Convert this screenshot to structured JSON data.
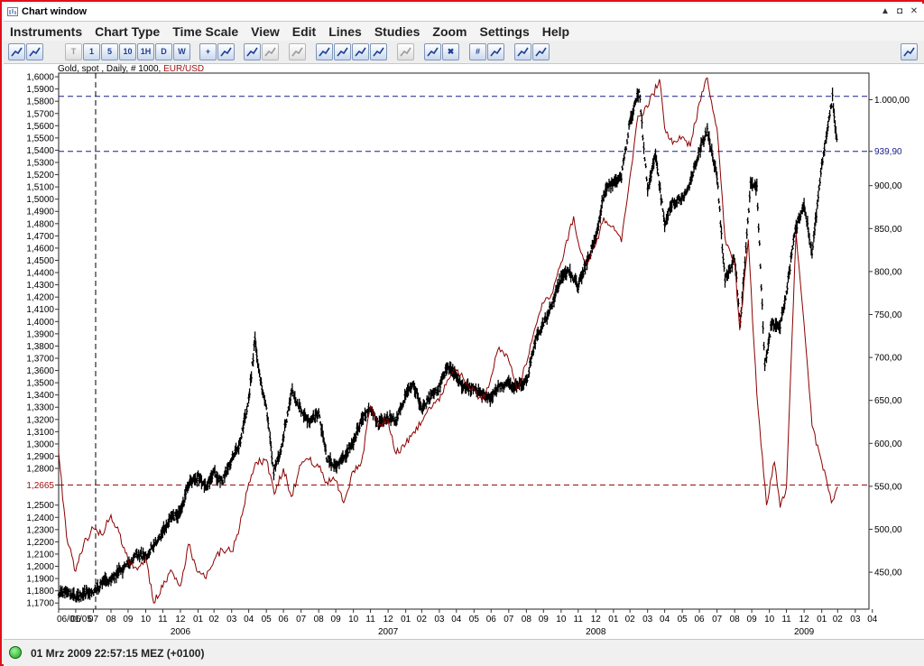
{
  "window": {
    "title": "Chart window",
    "minimize_glyph": "▲",
    "restore_glyph": "◘",
    "close_glyph": "✕"
  },
  "menu": [
    "Instruments",
    "Chart Type",
    "Time Scale",
    "View",
    "Edit",
    "Lines",
    "Studies",
    "Zoom",
    "Settings",
    "Help"
  ],
  "toolbar": [
    {
      "name": "instruments-icon",
      "label": "",
      "disabled": false
    },
    {
      "name": "bar-chart-type-icon",
      "label": "",
      "disabled": false
    },
    {
      "name": "tick-interval-button",
      "label": "T",
      "disabled": true
    },
    {
      "name": "interval-1-button",
      "label": "1",
      "disabled": false
    },
    {
      "name": "interval-5-button",
      "label": "5",
      "disabled": false
    },
    {
      "name": "interval-10-button",
      "label": "10",
      "disabled": false
    },
    {
      "name": "interval-1h-button",
      "label": "1H",
      "disabled": false
    },
    {
      "name": "interval-daily-button",
      "label": "D",
      "disabled": false
    },
    {
      "name": "interval-weekly-button",
      "label": "W",
      "disabled": false
    },
    {
      "name": "crosshair-icon",
      "label": "+",
      "disabled": false
    },
    {
      "name": "auto-scale-icon",
      "label": "",
      "disabled": false
    },
    {
      "name": "zoom-in-icon",
      "label": "",
      "disabled": false
    },
    {
      "name": "zoom-out-icon",
      "label": "",
      "disabled": true
    },
    {
      "name": "volume-icon",
      "label": "",
      "disabled": true
    },
    {
      "name": "trendline-icon",
      "label": "",
      "disabled": false
    },
    {
      "name": "channel-icon",
      "label": "",
      "disabled": false
    },
    {
      "name": "fibonacci-icon",
      "label": "",
      "disabled": false
    },
    {
      "name": "gann-icon",
      "label": "",
      "disabled": false
    },
    {
      "name": "select-line-icon",
      "label": "",
      "disabled": true
    },
    {
      "name": "eraser-icon",
      "label": "",
      "disabled": false
    },
    {
      "name": "delete-lines-icon",
      "label": "✖",
      "disabled": false
    },
    {
      "name": "grid-icon",
      "label": "#",
      "disabled": false
    },
    {
      "name": "grid-settings-icon",
      "label": "",
      "disabled": false
    },
    {
      "name": "print-icon",
      "label": "",
      "disabled": false
    },
    {
      "name": "print-preview-icon",
      "label": "",
      "disabled": false
    },
    {
      "name": "pin-icon",
      "label": "",
      "disabled": false
    }
  ],
  "chart_header": {
    "prefix": "Gold, spot , Daily, # 1000, ",
    "pair": "EUR/USD"
  },
  "status": {
    "text": "01 Mrz 2009 22:57:15  MEZ (+0100)"
  },
  "chart_data": {
    "type": "line",
    "title": "Gold, spot , Daily, # 1000, EUR/USD",
    "xlabel": "",
    "left_axis": {
      "series": "EUR/USD",
      "ticks": [
        "1,1700",
        "1,1800",
        "1,1900",
        "1,2000",
        "1,2100",
        "1,2200",
        "1,2300",
        "1,2400",
        "1,2500",
        "1,2665",
        "1,2800",
        "1,2900",
        "1,3000",
        "1,3100",
        "1,3200",
        "1,3300",
        "1,3400",
        "1,3500",
        "1,3600",
        "1,3700",
        "1,3800",
        "1,3900",
        "1,4000",
        "1,4100",
        "1,4200",
        "1,4300",
        "1,4400",
        "1,4500",
        "1,4600",
        "1,4700",
        "1,4800",
        "1,4900",
        "1,5000",
        "1,5100",
        "1,5200",
        "1,5300",
        "1,5400",
        "1,5500",
        "1,5600",
        "1,5700",
        "1,5800",
        "1,5900",
        "1,6000"
      ],
      "highlight_tick": "1,2665",
      "highlight_color": "#a01010",
      "ylim": [
        1.165,
        1.603
      ]
    },
    "right_axis": {
      "series": "Gold, spot",
      "ticks": [
        "450,00",
        "500,00",
        "550,00",
        "600,00",
        "650,00",
        "700,00",
        "750,00",
        "800,00",
        "850,00",
        "900,00",
        "939,90",
        "1.000,00"
      ],
      "highlight_tick": "939,90",
      "highlight_color": "#1a1a8c",
      "ylim": [
        407,
        1031
      ]
    },
    "x_axis": {
      "month_labels": [
        "06/01/05",
        "06",
        "07",
        "08",
        "09",
        "10",
        "11",
        "12",
        "01",
        "02",
        "03",
        "04",
        "05",
        "06",
        "07",
        "08",
        "09",
        "10",
        "11",
        "12",
        "01",
        "02",
        "03",
        "04",
        "05",
        "06",
        "07",
        "08",
        "09",
        "10",
        "11",
        "12",
        "01",
        "02",
        "03",
        "04",
        "05",
        "06",
        "07",
        "08",
        "09",
        "10",
        "11",
        "12",
        "01",
        "02",
        "03",
        "04"
      ],
      "year_labels": [
        "2006",
        "2007",
        "2008",
        "2009"
      ]
    },
    "reference_lines": [
      {
        "axis": "right",
        "value": 1004.0,
        "color": "#1a1a8c"
      },
      {
        "axis": "right",
        "value": 939.9,
        "color": "#1a1a8c"
      },
      {
        "axis": "left",
        "value": 1.2665,
        "color": "#8b0000"
      },
      {
        "axis": "x",
        "value": "2005-08-05",
        "color": "#000000"
      }
    ],
    "series": [
      {
        "name": "Gold, spot",
        "axis": "right",
        "color": "#000000",
        "points": [
          [
            "2005-06-01",
            424
          ],
          [
            "2005-06-15",
            428
          ],
          [
            "2005-07-01",
            420
          ],
          [
            "2005-07-15",
            425
          ],
          [
            "2005-08-01",
            428
          ],
          [
            "2005-08-10",
            432
          ],
          [
            "2005-08-20",
            441
          ],
          [
            "2005-09-01",
            439
          ],
          [
            "2005-09-15",
            450
          ],
          [
            "2005-10-01",
            460
          ],
          [
            "2005-10-15",
            470
          ],
          [
            "2005-11-01",
            469
          ],
          [
            "2005-11-15",
            481
          ],
          [
            "2005-12-01",
            497
          ],
          [
            "2005-12-15",
            513
          ],
          [
            "2006-01-01",
            518
          ],
          [
            "2006-01-15",
            553
          ],
          [
            "2006-02-01",
            562
          ],
          [
            "2006-02-15",
            551
          ],
          [
            "2006-03-01",
            565
          ],
          [
            "2006-03-15",
            555
          ],
          [
            "2006-04-01",
            582
          ],
          [
            "2006-04-15",
            600
          ],
          [
            "2006-05-01",
            650
          ],
          [
            "2006-05-12",
            721
          ],
          [
            "2006-05-20",
            680
          ],
          [
            "2006-06-01",
            642
          ],
          [
            "2006-06-14",
            568
          ],
          [
            "2006-06-25",
            590
          ],
          [
            "2006-07-05",
            623
          ],
          [
            "2006-07-15",
            661
          ],
          [
            "2006-08-01",
            640
          ],
          [
            "2006-08-15",
            626
          ],
          [
            "2006-09-01",
            635
          ],
          [
            "2006-09-15",
            584
          ],
          [
            "2006-10-01",
            572
          ],
          [
            "2006-10-15",
            583
          ],
          [
            "2006-11-01",
            603
          ],
          [
            "2006-11-15",
            628
          ],
          [
            "2006-12-01",
            641
          ],
          [
            "2006-12-15",
            622
          ],
          [
            "2007-01-01",
            630
          ],
          [
            "2007-01-15",
            626
          ],
          [
            "2007-02-01",
            655
          ],
          [
            "2007-02-15",
            668
          ],
          [
            "2007-03-01",
            640
          ],
          [
            "2007-03-15",
            652
          ],
          [
            "2007-04-01",
            665
          ],
          [
            "2007-04-15",
            690
          ],
          [
            "2007-05-01",
            676
          ],
          [
            "2007-05-15",
            665
          ],
          [
            "2007-06-01",
            663
          ],
          [
            "2007-06-15",
            656
          ],
          [
            "2007-07-01",
            652
          ],
          [
            "2007-07-15",
            666
          ],
          [
            "2007-08-01",
            669
          ],
          [
            "2007-08-15",
            665
          ],
          [
            "2007-09-01",
            672
          ],
          [
            "2007-09-15",
            715
          ],
          [
            "2007-10-01",
            740
          ],
          [
            "2007-10-15",
            760
          ],
          [
            "2007-11-01",
            793
          ],
          [
            "2007-11-15",
            800
          ],
          [
            "2007-12-01",
            783
          ],
          [
            "2007-12-15",
            810
          ],
          [
            "2008-01-01",
            838
          ],
          [
            "2008-01-15",
            890
          ],
          [
            "2008-02-01",
            905
          ],
          [
            "2008-02-15",
            910
          ],
          [
            "2008-03-01",
            975
          ],
          [
            "2008-03-17",
            1011
          ],
          [
            "2008-04-01",
            895
          ],
          [
            "2008-04-15",
            935
          ],
          [
            "2008-05-01",
            855
          ],
          [
            "2008-05-15",
            880
          ],
          [
            "2008-06-01",
            885
          ],
          [
            "2008-06-15",
            902
          ],
          [
            "2008-07-01",
            940
          ],
          [
            "2008-07-15",
            965
          ],
          [
            "2008-08-01",
            910
          ],
          [
            "2008-08-15",
            790
          ],
          [
            "2008-09-01",
            815
          ],
          [
            "2008-09-11",
            740
          ],
          [
            "2008-09-29",
            900
          ],
          [
            "2008-10-10",
            900
          ],
          [
            "2008-10-24",
            690
          ],
          [
            "2008-11-05",
            740
          ],
          [
            "2008-11-20",
            737
          ],
          [
            "2008-12-01",
            775
          ],
          [
            "2008-12-15",
            845
          ],
          [
            "2009-01-01",
            880
          ],
          [
            "2009-01-15",
            820
          ],
          [
            "2009-02-01",
            925
          ],
          [
            "2009-02-20",
            1003
          ],
          [
            "2009-03-01",
            941
          ]
        ]
      },
      {
        "name": "EUR/USD",
        "axis": "left",
        "color": "#8b0000",
        "points": [
          [
            "2005-06-01",
            1.293
          ],
          [
            "2005-06-15",
            1.224
          ],
          [
            "2005-07-01",
            1.196
          ],
          [
            "2005-07-15",
            1.218
          ],
          [
            "2005-08-01",
            1.231
          ],
          [
            "2005-08-15",
            1.226
          ],
          [
            "2005-09-01",
            1.242
          ],
          [
            "2005-09-15",
            1.228
          ],
          [
            "2005-10-01",
            1.205
          ],
          [
            "2005-10-15",
            1.199
          ],
          [
            "2005-11-01",
            1.207
          ],
          [
            "2005-11-15",
            1.17
          ],
          [
            "2005-12-01",
            1.183
          ],
          [
            "2005-12-15",
            1.197
          ],
          [
            "2006-01-01",
            1.184
          ],
          [
            "2006-01-15",
            1.218
          ],
          [
            "2006-02-01",
            1.195
          ],
          [
            "2006-02-15",
            1.19
          ],
          [
            "2006-03-01",
            1.205
          ],
          [
            "2006-03-15",
            1.214
          ],
          [
            "2006-04-01",
            1.212
          ],
          [
            "2006-04-15",
            1.232
          ],
          [
            "2006-05-01",
            1.268
          ],
          [
            "2006-05-15",
            1.285
          ],
          [
            "2006-06-01",
            1.287
          ],
          [
            "2006-06-15",
            1.259
          ],
          [
            "2006-07-01",
            1.28
          ],
          [
            "2006-07-15",
            1.257
          ],
          [
            "2006-08-01",
            1.283
          ],
          [
            "2006-08-15",
            1.287
          ],
          [
            "2006-09-01",
            1.281
          ],
          [
            "2006-09-15",
            1.269
          ],
          [
            "2006-10-01",
            1.27
          ],
          [
            "2006-10-15",
            1.252
          ],
          [
            "2006-11-01",
            1.278
          ],
          [
            "2006-11-15",
            1.285
          ],
          [
            "2006-12-01",
            1.331
          ],
          [
            "2006-12-15",
            1.315
          ],
          [
            "2007-01-01",
            1.32
          ],
          [
            "2007-01-15",
            1.292
          ],
          [
            "2007-02-01",
            1.3
          ],
          [
            "2007-02-15",
            1.31
          ],
          [
            "2007-03-01",
            1.318
          ],
          [
            "2007-03-15",
            1.33
          ],
          [
            "2007-04-01",
            1.335
          ],
          [
            "2007-04-15",
            1.352
          ],
          [
            "2007-05-01",
            1.36
          ],
          [
            "2007-05-15",
            1.352
          ],
          [
            "2007-06-01",
            1.345
          ],
          [
            "2007-06-15",
            1.335
          ],
          [
            "2007-07-01",
            1.355
          ],
          [
            "2007-07-15",
            1.379
          ],
          [
            "2007-08-01",
            1.368
          ],
          [
            "2007-08-15",
            1.345
          ],
          [
            "2007-09-01",
            1.365
          ],
          [
            "2007-09-15",
            1.393
          ],
          [
            "2007-10-01",
            1.415
          ],
          [
            "2007-10-15",
            1.422
          ],
          [
            "2007-11-01",
            1.448
          ],
          [
            "2007-11-23",
            1.486
          ],
          [
            "2007-12-01",
            1.465
          ],
          [
            "2007-12-15",
            1.448
          ],
          [
            "2008-01-01",
            1.463
          ],
          [
            "2008-01-15",
            1.485
          ],
          [
            "2008-02-01",
            1.478
          ],
          [
            "2008-02-15",
            1.465
          ],
          [
            "2008-03-01",
            1.518
          ],
          [
            "2008-03-15",
            1.568
          ],
          [
            "2008-04-01",
            1.575
          ],
          [
            "2008-04-22",
            1.598
          ],
          [
            "2008-05-01",
            1.558
          ],
          [
            "2008-05-15",
            1.545
          ],
          [
            "2008-06-01",
            1.551
          ],
          [
            "2008-06-15",
            1.543
          ],
          [
            "2008-07-01",
            1.579
          ],
          [
            "2008-07-15",
            1.599
          ],
          [
            "2008-08-01",
            1.558
          ],
          [
            "2008-08-15",
            1.468
          ],
          [
            "2008-09-01",
            1.448
          ],
          [
            "2008-09-10",
            1.393
          ],
          [
            "2008-09-25",
            1.467
          ],
          [
            "2008-10-10",
            1.34
          ],
          [
            "2008-10-27",
            1.25
          ],
          [
            "2008-11-10",
            1.285
          ],
          [
            "2008-11-20",
            1.248
          ],
          [
            "2008-12-01",
            1.265
          ],
          [
            "2008-12-18",
            1.472
          ],
          [
            "2009-01-01",
            1.398
          ],
          [
            "2009-01-15",
            1.315
          ],
          [
            "2009-02-01",
            1.285
          ],
          [
            "2009-02-18",
            1.252
          ],
          [
            "2009-03-01",
            1.265
          ]
        ]
      }
    ]
  }
}
